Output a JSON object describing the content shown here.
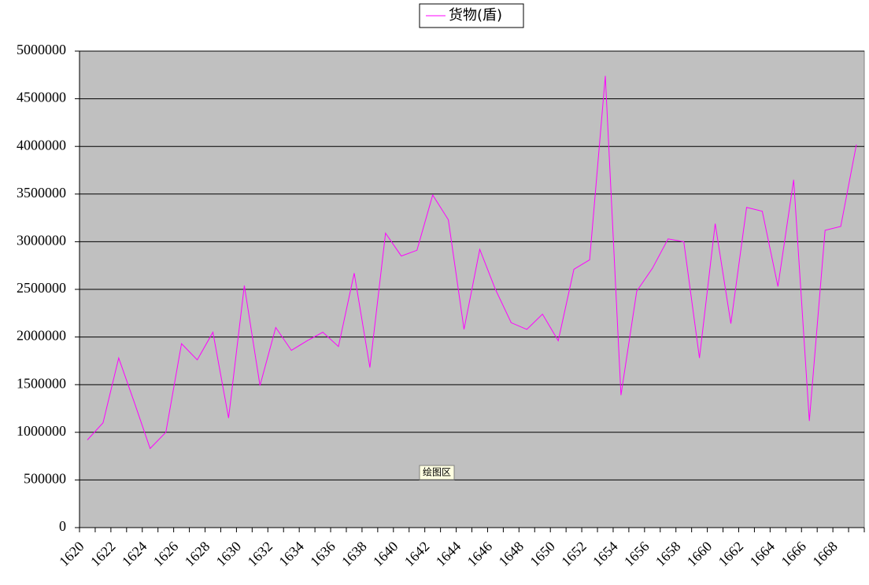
{
  "chart_data": {
    "type": "line",
    "categories": [
      "1620",
      null,
      "1622",
      null,
      "1624",
      null,
      "1626",
      null,
      "1628",
      null,
      "1630",
      null,
      "1632",
      null,
      "1634",
      null,
      "1636",
      null,
      "1638",
      null,
      "1640",
      null,
      "1642",
      null,
      "1644",
      null,
      "1646",
      null,
      "1648",
      null,
      "1650",
      null,
      "1652",
      null,
      "1654",
      null,
      "1656",
      null,
      "1658",
      null,
      "1660",
      null,
      "1662",
      null,
      "1664",
      null,
      "1666",
      null,
      "1668",
      null
    ],
    "series": [
      {
        "name": "货物(盾)",
        "color": "#ff00ff",
        "values": [
          920000,
          1100000,
          1780000,
          1310000,
          830000,
          1000000,
          1930000,
          1760000,
          2050000,
          1150000,
          2540000,
          1490000,
          2100000,
          1860000,
          1960000,
          2050000,
          1900000,
          2670000,
          1680000,
          3090000,
          2850000,
          2910000,
          3490000,
          3230000,
          2080000,
          2920000,
          2500000,
          2150000,
          2080000,
          2240000,
          1960000,
          2710000,
          2810000,
          4740000,
          1390000,
          2480000,
          2720000,
          3030000,
          3000000,
          1780000,
          3190000,
          2140000,
          3360000,
          3320000,
          2530000,
          3650000,
          1120000,
          3120000,
          3160000,
          4020000
        ]
      }
    ],
    "ylim": [
      0,
      5000000
    ],
    "yticks": [
      0,
      500000,
      1000000,
      1500000,
      2000000,
      2500000,
      3000000,
      3500000,
      4000000,
      4500000,
      5000000
    ],
    "grid": true,
    "legend": "top",
    "tooltip": "绘图区"
  }
}
